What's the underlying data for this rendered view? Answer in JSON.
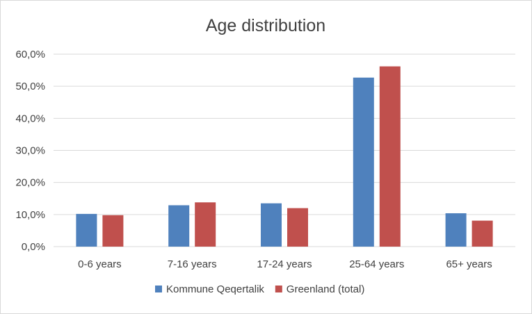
{
  "chart_data": {
    "type": "bar",
    "title": "Age distribution",
    "categories": [
      "0-6 years",
      "7-16 years",
      "17-24 years",
      "25-64 years",
      "65+ years"
    ],
    "series": [
      {
        "name": "Kommune Qeqertalik",
        "color": "#4f81bd",
        "values": [
          10.2,
          12.9,
          13.5,
          52.7,
          10.4
        ]
      },
      {
        "name": "Greenland (total)",
        "color": "#c0504d",
        "values": [
          9.8,
          13.8,
          12.0,
          56.2,
          8.1
        ]
      }
    ],
    "y_ticks": [
      "0,0%",
      "10,0%",
      "20,0%",
      "30,0%",
      "40,0%",
      "50,0%",
      "60,0%"
    ],
    "ylim": [
      0,
      60
    ],
    "unit": "%",
    "grid": true,
    "legend_position": "bottom"
  }
}
